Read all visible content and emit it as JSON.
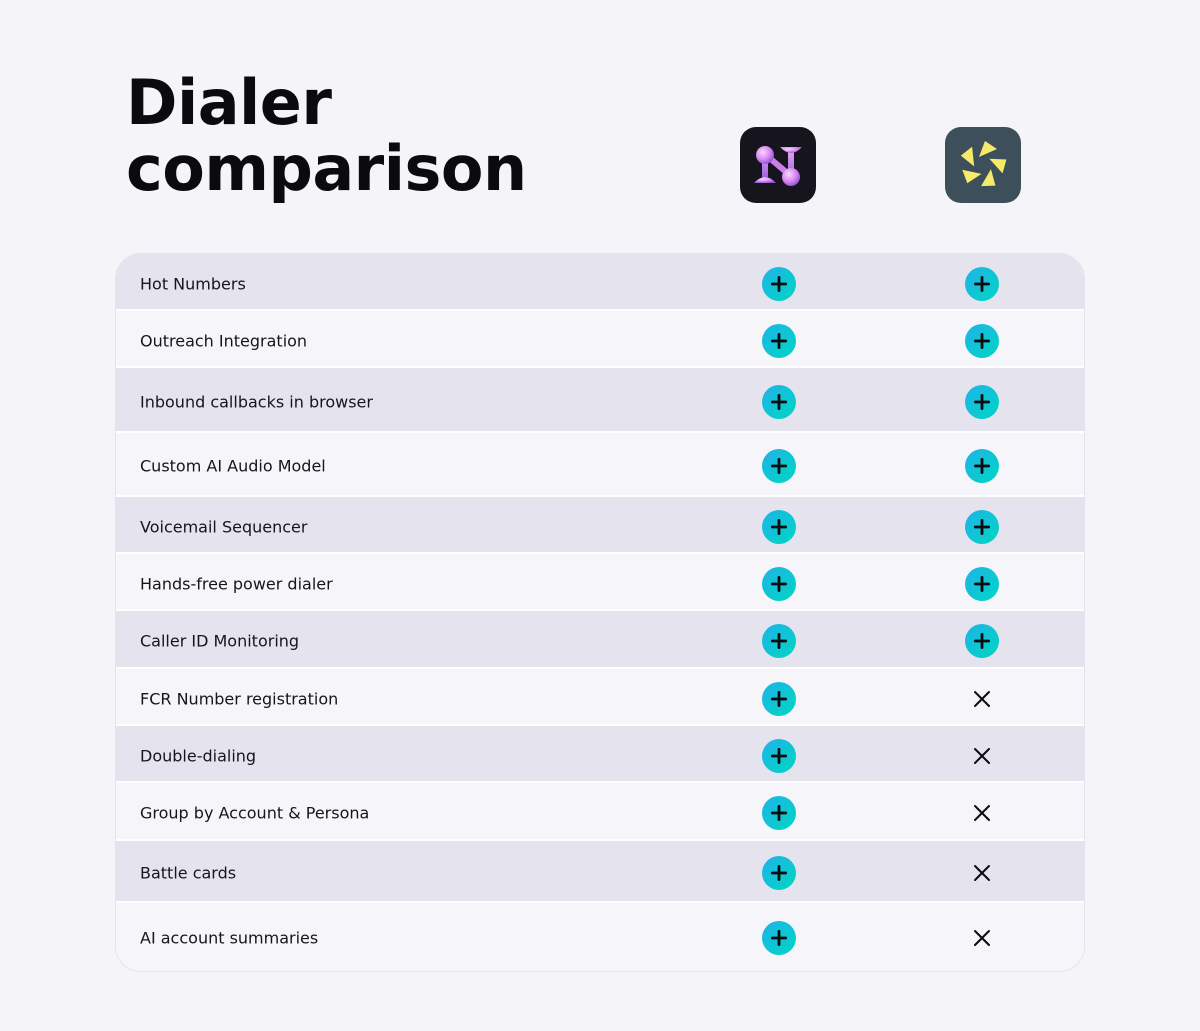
{
  "title": {
    "line1": "Dialer",
    "line2": "comparison"
  },
  "logos": [
    {
      "icon": "nooks-logo-icon",
      "background": "#16141d",
      "accent": "#d98cf0"
    },
    {
      "icon": "pinwheel-logo-icon",
      "background": "#3c4f5b",
      "accent": "#f5ea6a"
    }
  ],
  "colors": {
    "check_gradient_start": "#1fb3e8",
    "check_gradient_end": "#00d6c2",
    "row_alt": "#e5e4ee",
    "row_plain": "#f6f6fa"
  },
  "rows": [
    {
      "feature": "Hot Numbers",
      "col1": "check",
      "col2": "check"
    },
    {
      "feature": "Outreach Integration",
      "col1": "check",
      "col2": "check"
    },
    {
      "feature": "Inbound callbacks in browser",
      "col1": "check",
      "col2": "check"
    },
    {
      "feature": "Custom AI Audio Model",
      "col1": "check",
      "col2": "check"
    },
    {
      "feature": "Voicemail Sequencer",
      "col1": "check",
      "col2": "check"
    },
    {
      "feature": "Hands-free power dialer",
      "col1": "check",
      "col2": "check"
    },
    {
      "feature": "Caller ID Monitoring",
      "col1": "check",
      "col2": "check"
    },
    {
      "feature": "FCR Number registration",
      "col1": "check",
      "col2": "cross"
    },
    {
      "feature": "Double-dialing",
      "col1": "check",
      "col2": "cross"
    },
    {
      "feature": "Group by Account & Persona",
      "col1": "check",
      "col2": "cross"
    },
    {
      "feature": "Battle cards",
      "col1": "check",
      "col2": "cross"
    },
    {
      "feature": "AI account summaries",
      "col1": "check",
      "col2": "cross"
    }
  ]
}
